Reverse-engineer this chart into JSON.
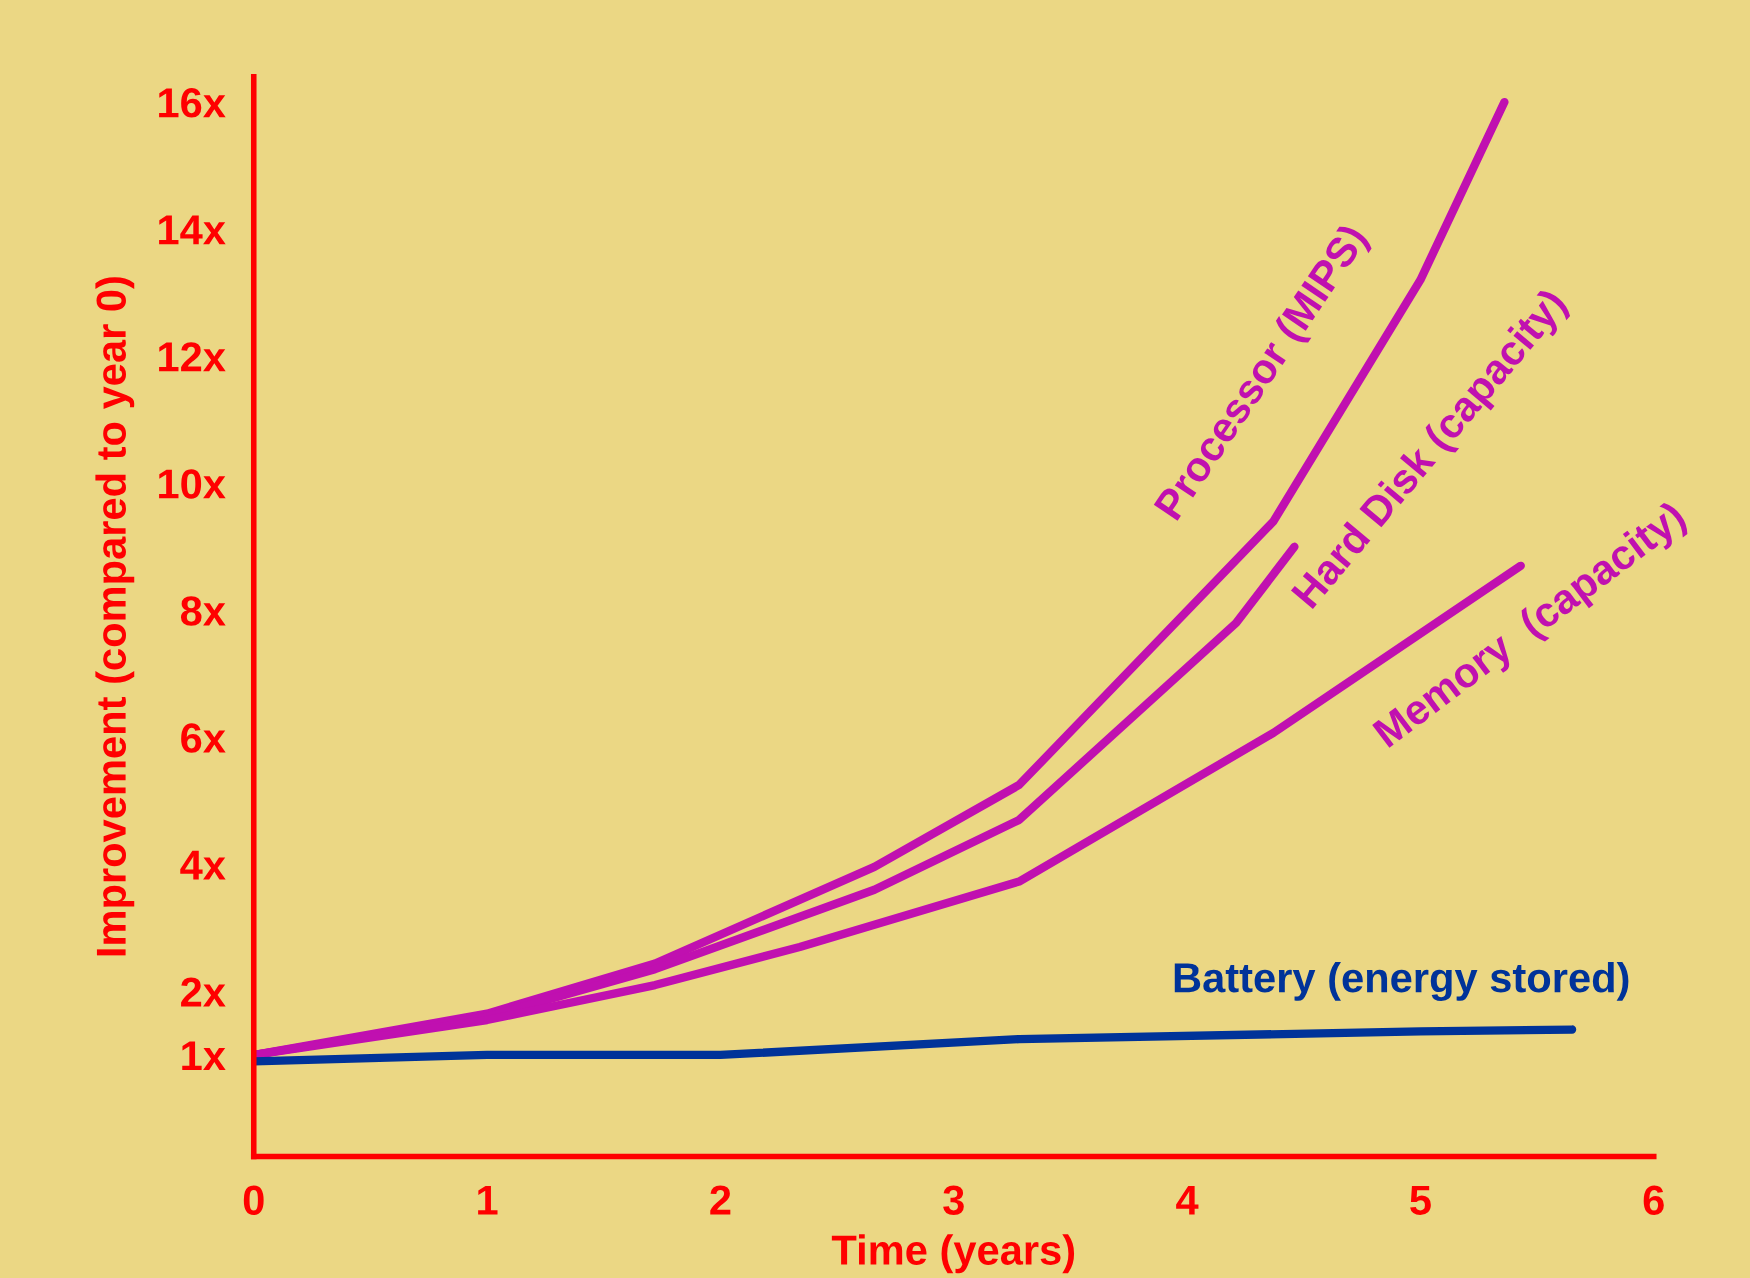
{
  "chart_data": {
    "type": "line",
    "xlabel": "Time (years)",
    "ylabel": "Improvement (compared to year 0)",
    "xlim": [
      0,
      6
    ],
    "ylim": [
      -0.6,
      16.4
    ],
    "xticks": [
      0,
      1,
      2,
      3,
      4,
      5,
      6
    ],
    "yticks": [
      {
        "value": 1,
        "label": "1x"
      },
      {
        "value": 2,
        "label": "2x"
      },
      {
        "value": 4,
        "label": "4x"
      },
      {
        "value": 6,
        "label": "6x"
      },
      {
        "value": 8,
        "label": "8x"
      },
      {
        "value": 10,
        "label": "10x"
      },
      {
        "value": 12,
        "label": "12x"
      },
      {
        "value": 14,
        "label": "14x"
      },
      {
        "value": 16,
        "label": "16x"
      }
    ],
    "grid": false,
    "legend": false,
    "marker": "none",
    "line_style": "solid",
    "series": [
      {
        "name": "Processor (MIPS)",
        "color": "#c010b0",
        "x": [
          0,
          1,
          1.72,
          2.66,
          3.28,
          4.37,
          5,
          5.36
        ],
        "values": [
          1,
          1.65,
          2.44,
          3.96,
          5.25,
          9.4,
          13.2,
          16
        ]
      },
      {
        "name": "Hard Disk (capacity)",
        "color": "#c010b0",
        "x": [
          0,
          1,
          1.72,
          2.66,
          3.28,
          4.21,
          4.46
        ],
        "values": [
          1,
          1.6,
          2.35,
          3.6,
          4.7,
          7.8,
          9
        ]
      },
      {
        "name": "Memory  (capacity)",
        "color": "#c010b0",
        "x": [
          0,
          1,
          1.72,
          2.34,
          3.28,
          4.37,
          5.43
        ],
        "values": [
          1,
          1.55,
          2.1,
          2.7,
          3.73,
          6.07,
          8.7
        ]
      },
      {
        "name": "Battery (energy stored)",
        "color": "#003399",
        "x": [
          0,
          1,
          2,
          3.28,
          5,
          5.65
        ],
        "values": [
          0.9,
          1.0,
          1.0,
          1.25,
          1.37,
          1.4
        ]
      }
    ]
  }
}
